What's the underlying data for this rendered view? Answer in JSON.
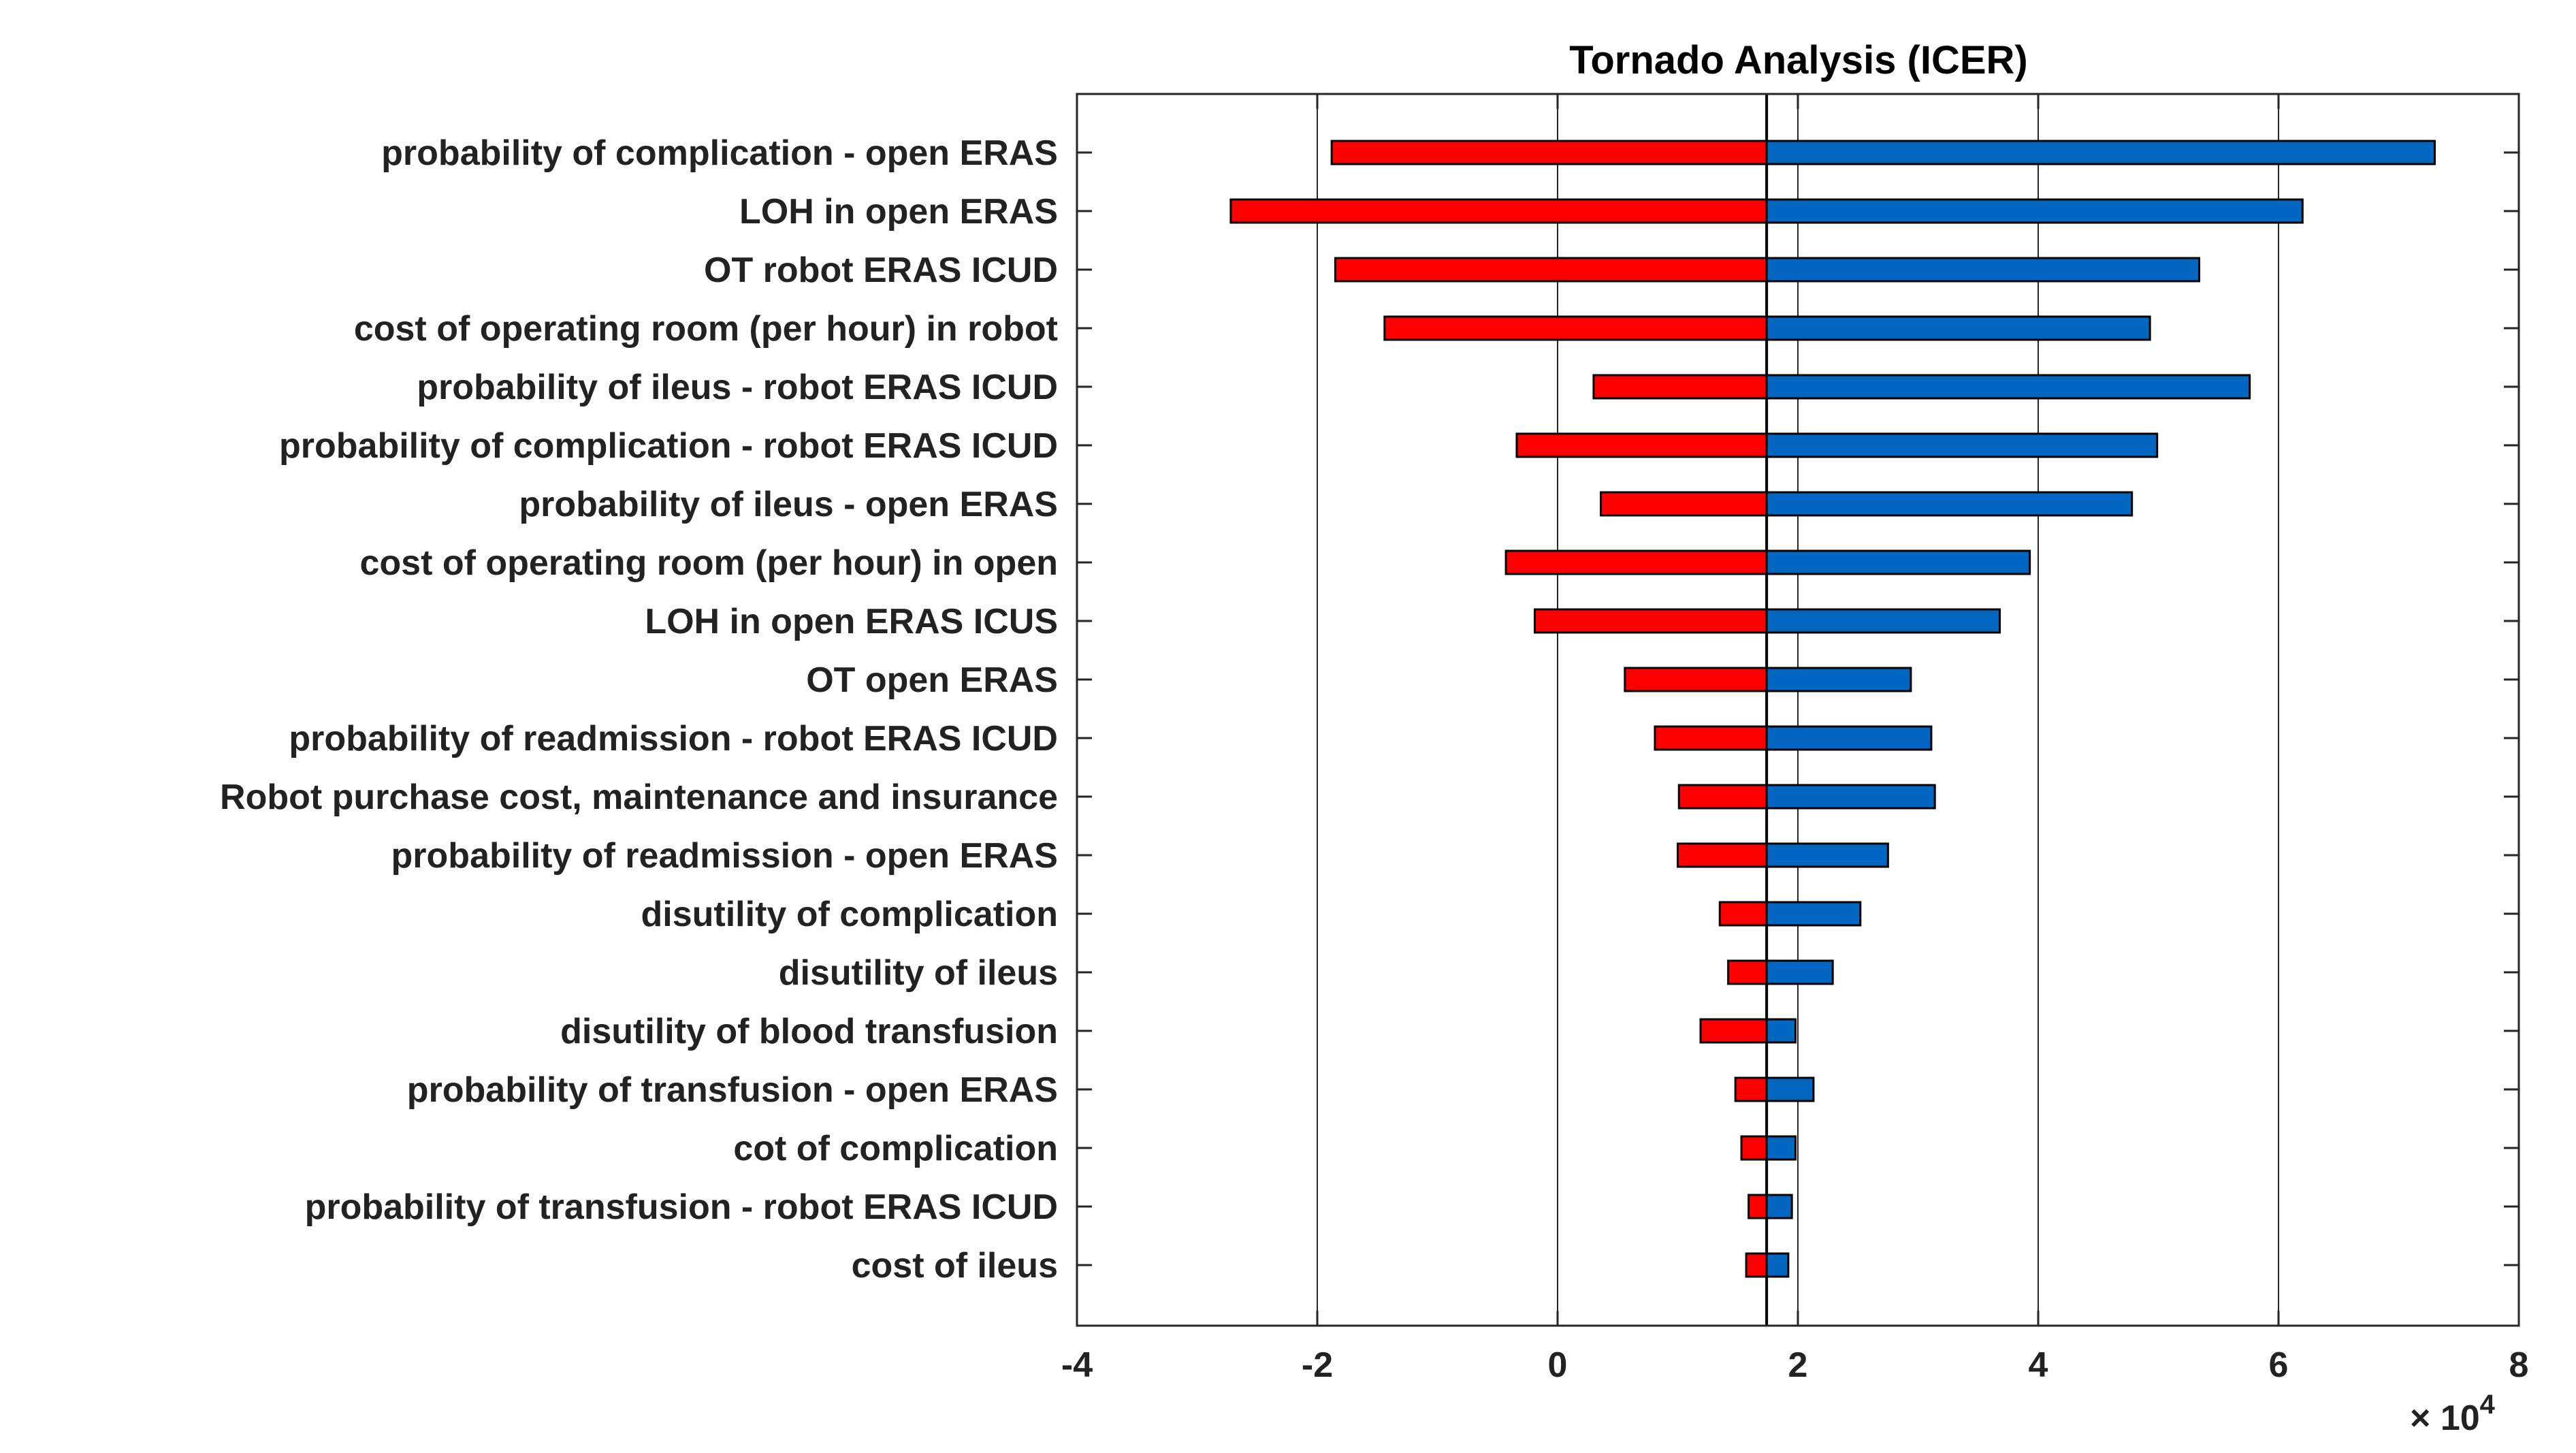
{
  "chart_data": {
    "type": "bar",
    "orientation": "horizontal",
    "title": "Tornado Analysis (ICER)",
    "xlabel": "",
    "ylabel": "",
    "xlim": [
      -4,
      8
    ],
    "xticks": [
      -4,
      -2,
      0,
      2,
      4,
      6,
      8
    ],
    "xtick_labels": [
      "-4",
      "-2",
      "0",
      "2",
      "4",
      "6",
      "8"
    ],
    "x_multiplier_label": "× 10",
    "x_multiplier_exponent": "4",
    "baseline": 1.74,
    "grid": "vertical",
    "colors": {
      "low": "#ff0000",
      "high": "#0066bf",
      "edge": "#000000",
      "grid": "#262626",
      "axis": "#262626"
    },
    "categories": [
      "probability of complication - open ERAS",
      "LOH in open ERAS",
      "OT robot ERAS ICUD",
      "cost of operating room (per hour)  in robot",
      "probability of ileus - robot ERAS ICUD",
      "probability of complication - robot ERAS ICUD",
      "probability of ileus - open ERAS",
      "cost of operating room (per hour)  in open",
      "LOH in open ERAS ICUS",
      "OT open ERAS",
      "probability of readmission - robot ERAS ICUD",
      "Robot purchase cost, maintenance and insurance",
      "probability of readmission - open ERAS",
      "disutility of complication",
      "disutility of ileus",
      "disutility of blood transfusion",
      "probability of transfusion - open ERAS",
      "cot of complication",
      "probability of transfusion - robot ERAS ICUD",
      "cost of ileus"
    ],
    "series": [
      {
        "name": "low",
        "values": [
          -1.88,
          -2.72,
          -1.85,
          -1.44,
          0.3,
          -0.34,
          0.36,
          -0.43,
          -0.19,
          0.56,
          0.81,
          1.01,
          1.0,
          1.35,
          1.42,
          1.19,
          1.48,
          1.53,
          1.59,
          1.57
        ]
      },
      {
        "name": "high",
        "values": [
          7.3,
          6.2,
          5.34,
          4.93,
          5.76,
          4.99,
          4.78,
          3.93,
          3.68,
          2.94,
          3.11,
          3.14,
          2.75,
          2.52,
          2.29,
          1.98,
          2.13,
          1.98,
          1.95,
          1.92
        ]
      }
    ]
  }
}
